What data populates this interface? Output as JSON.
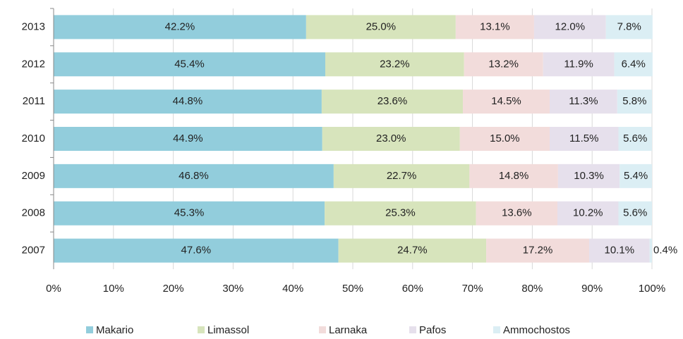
{
  "chart_data": {
    "type": "stacked_bar_horizontal",
    "categories": [
      "2013",
      "2012",
      "2011",
      "2010",
      "2009",
      "2008",
      "2007"
    ],
    "series": [
      {
        "name": "Makario",
        "color": "#92cddc",
        "values": [
          42.2,
          45.4,
          44.8,
          44.9,
          46.8,
          45.3,
          47.6
        ],
        "value_labels": [
          "42.2%",
          "45.4%",
          "44.8%",
          "44.9%",
          "46.8%",
          "45.3%",
          "47.6%"
        ]
      },
      {
        "name": "Limassol",
        "color": "#d7e4bc",
        "values": [
          25.0,
          23.2,
          23.6,
          23.0,
          22.7,
          25.3,
          24.7
        ],
        "value_labels": [
          "25.0%",
          "23.2%",
          "23.6%",
          "23.0%",
          "22.7%",
          "25.3%",
          "24.7%"
        ]
      },
      {
        "name": "Larnaka",
        "color": "#f2dcdb",
        "values": [
          13.1,
          13.2,
          14.5,
          15.0,
          14.8,
          13.6,
          17.2
        ],
        "value_labels": [
          "13.1%",
          "13.2%",
          "14.5%",
          "15.0%",
          "14.8%",
          "13.6%",
          "17.2%"
        ]
      },
      {
        "name": "Pafos",
        "color": "#e6e0ec",
        "values": [
          12.0,
          11.9,
          11.3,
          11.5,
          10.3,
          10.2,
          10.1
        ],
        "value_labels": [
          "12.0%",
          "11.9%",
          "11.3%",
          "11.5%",
          "10.3%",
          "10.2%",
          "10.1%"
        ]
      },
      {
        "name": "Ammochostos",
        "color": "#dbeef4",
        "values": [
          7.8,
          6.4,
          5.8,
          5.6,
          5.4,
          5.6,
          0.4
        ],
        "value_labels": [
          "7.8%",
          "6.4%",
          "5.8%",
          "5.6%",
          "5.4%",
          "5.6%",
          "0.4%"
        ]
      }
    ],
    "xlim": [
      0,
      100
    ],
    "xticks": [
      {
        "value": 0,
        "label": "0%"
      },
      {
        "value": 10,
        "label": "10%"
      },
      {
        "value": 20,
        "label": "20%"
      },
      {
        "value": 30,
        "label": "30%"
      },
      {
        "value": 40,
        "label": "40%"
      },
      {
        "value": 50,
        "label": "50%"
      },
      {
        "value": 60,
        "label": "60%"
      },
      {
        "value": 70,
        "label": "70%"
      },
      {
        "value": 80,
        "label": "80%"
      },
      {
        "value": 90,
        "label": "90%"
      },
      {
        "value": 100,
        "label": "100%"
      }
    ],
    "grid": true,
    "legend": "bottom"
  }
}
